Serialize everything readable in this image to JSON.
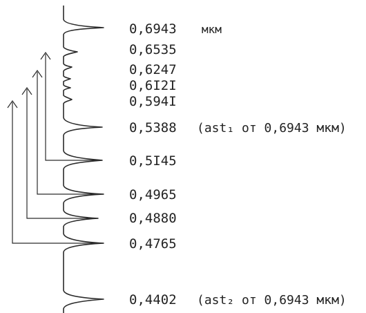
{
  "lines": [
    {
      "wavelength": "0,6943",
      "suffix": "мкм"
    },
    {
      "wavelength": "0,6535",
      "suffix": ""
    },
    {
      "wavelength": "0,6247",
      "suffix": ""
    },
    {
      "wavelength": "0,6I2I",
      "suffix": ""
    },
    {
      "wavelength": "0,594I",
      "suffix": ""
    },
    {
      "wavelength": "0,5388",
      "suffix": "(ast₁ от 0,6943 мкм)"
    },
    {
      "wavelength": "0,5I45",
      "suffix": ""
    },
    {
      "wavelength": "0,4965",
      "suffix": ""
    },
    {
      "wavelength": "0,4880",
      "suffix": ""
    },
    {
      "wavelength": "0,4765",
      "suffix": ""
    },
    {
      "wavelength": "0,4402",
      "suffix": "(ast₂ от 0,6943 мкм)"
    }
  ],
  "connections": [
    {
      "from": "0,6535",
      "to": "0,5I45"
    },
    {
      "from": "0,6247",
      "to": "0,4965"
    },
    {
      "from": "0,6I2I",
      "to": "0,4880"
    },
    {
      "from": "0,594I",
      "to": "0,4765"
    }
  ]
}
